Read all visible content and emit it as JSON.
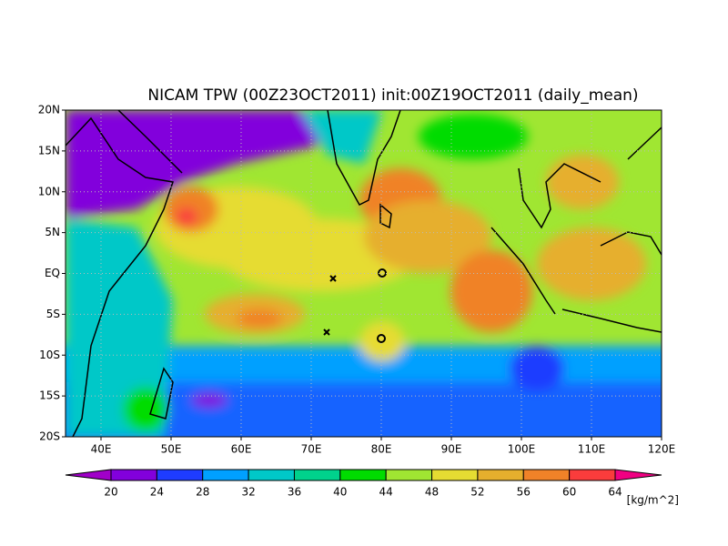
{
  "map": {
    "title": "NICAM TPW (00Z23OCT2011) init:00Z19OCT2011 (daily_mean)",
    "lat_labels": [
      "20N",
      "15N",
      "10N",
      "5N",
      "EQ",
      "5S",
      "10S",
      "15S",
      "20S"
    ],
    "lon_labels": [
      "40E",
      "50E",
      "60E",
      "70E",
      "80E",
      "90E",
      "100E",
      "110E",
      "120E"
    ],
    "colorbar": {
      "levels": [
        20,
        24,
        28,
        32,
        36,
        40,
        44,
        48,
        52,
        56,
        60,
        64
      ],
      "colors": [
        "#a000c8",
        "#8200dc",
        "#1e3cff",
        "#00a0ff",
        "#00c8c8",
        "#00d28c",
        "#00dc00",
        "#a0e632",
        "#e6dc32",
        "#e6af2d",
        "#f08228",
        "#fa3c3c",
        "#f00082"
      ],
      "unit": "[kg/m^2]"
    }
  }
}
